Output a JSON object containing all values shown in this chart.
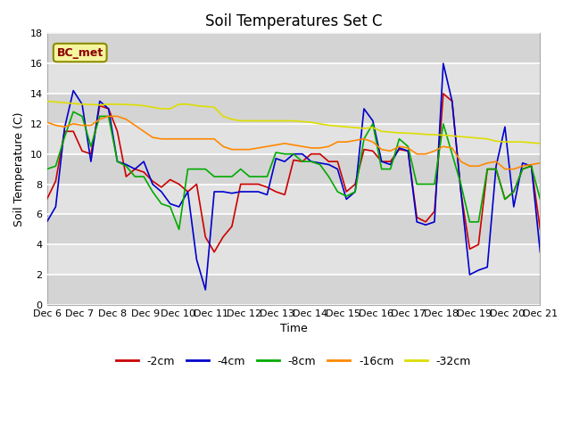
{
  "title": "Soil Temperatures Set C",
  "xlabel": "Time",
  "ylabel": "Soil Temperature (C)",
  "ylim": [
    0,
    18
  ],
  "yticks": [
    0,
    2,
    4,
    6,
    8,
    10,
    12,
    14,
    16,
    18
  ],
  "background_color": "#ffffff",
  "plot_bg_color": "#e0e0e0",
  "annotation_text": "BC_met",
  "annotation_color": "#8b0000",
  "annotation_bg": "#f5f5a0",
  "x_labels": [
    "Dec 6",
    "Dec 7",
    "Dec 8",
    "Dec 9",
    "Dec 10",
    "Dec 11",
    "Dec 12",
    "Dec 13",
    "Dec 14",
    "Dec 15",
    "Dec 16",
    "Dec 17",
    "Dec 18",
    "Dec 19",
    "Dec 20",
    "Dec 21"
  ],
  "series": {
    "-2cm": {
      "color": "#cc0000",
      "data": [
        7.0,
        8.2,
        11.5,
        11.5,
        10.2,
        10.0,
        13.2,
        13.0,
        11.5,
        8.5,
        9.0,
        8.8,
        8.2,
        7.8,
        8.3,
        8.0,
        7.5,
        8.0,
        4.5,
        3.5,
        4.5,
        5.2,
        8.0,
        8.0,
        8.0,
        7.8,
        7.5,
        7.3,
        9.6,
        9.5,
        10.0,
        10.0,
        9.5,
        9.5,
        7.5,
        8.0,
        10.3,
        10.2,
        9.5,
        9.5,
        10.3,
        10.2,
        5.8,
        5.5,
        6.2,
        14.0,
        13.5,
        7.5,
        3.7,
        4.0,
        9.0,
        9.0,
        7.0,
        7.5,
        9.0,
        9.2,
        5.0
      ]
    },
    "-4cm": {
      "color": "#0000cc",
      "data": [
        5.5,
        6.5,
        11.7,
        14.2,
        13.3,
        9.5,
        13.5,
        13.0,
        9.5,
        9.3,
        9.0,
        9.5,
        8.0,
        7.5,
        6.7,
        6.5,
        7.5,
        3.0,
        1.0,
        7.5,
        7.5,
        7.4,
        7.5,
        7.5,
        7.5,
        7.3,
        9.7,
        9.5,
        10.0,
        10.0,
        9.5,
        9.4,
        9.3,
        9.0,
        7.0,
        7.5,
        13.0,
        12.2,
        9.5,
        9.3,
        10.4,
        10.2,
        5.5,
        5.3,
        5.5,
        16.0,
        13.5,
        7.5,
        2.0,
        2.3,
        2.5,
        9.2,
        11.8,
        6.5,
        9.4,
        9.2,
        3.5
      ]
    },
    "-8cm": {
      "color": "#00aa00",
      "data": [
        9.0,
        9.2,
        11.1,
        12.8,
        12.5,
        10.5,
        12.5,
        12.5,
        9.5,
        9.2,
        8.5,
        8.5,
        7.5,
        6.7,
        6.5,
        5.0,
        9.0,
        9.0,
        9.0,
        8.5,
        8.5,
        8.5,
        9.0,
        8.5,
        8.5,
        8.5,
        10.1,
        10.0,
        10.0,
        9.5,
        9.5,
        9.3,
        8.5,
        7.5,
        7.2,
        7.5,
        11.0,
        12.0,
        9.0,
        9.0,
        11.0,
        10.5,
        8.0,
        8.0,
        8.0,
        12.0,
        10.0,
        8.0,
        5.5,
        5.5,
        9.0,
        9.0,
        7.0,
        7.5,
        9.0,
        9.2,
        7.0
      ]
    },
    "-16cm": {
      "color": "#ff8800",
      "data": [
        12.1,
        11.9,
        11.8,
        12.0,
        11.9,
        11.9,
        12.3,
        12.5,
        12.5,
        12.3,
        11.9,
        11.5,
        11.1,
        11.0,
        11.0,
        11.0,
        11.0,
        11.0,
        11.0,
        11.0,
        10.5,
        10.3,
        10.3,
        10.3,
        10.4,
        10.5,
        10.6,
        10.7,
        10.6,
        10.5,
        10.4,
        10.4,
        10.5,
        10.8,
        10.8,
        10.9,
        11.0,
        10.8,
        10.3,
        10.2,
        10.5,
        10.4,
        10.0,
        10.0,
        10.2,
        10.5,
        10.4,
        9.5,
        9.2,
        9.2,
        9.4,
        9.5,
        9.0,
        9.0,
        9.2,
        9.3,
        9.4
      ]
    },
    "-32cm": {
      "color": "#dddd00",
      "data": [
        13.5,
        13.45,
        13.4,
        13.35,
        13.3,
        13.28,
        13.25,
        13.3,
        13.3,
        13.28,
        13.25,
        13.2,
        13.1,
        13.0,
        13.0,
        13.3,
        13.3,
        13.2,
        13.15,
        13.1,
        12.5,
        12.3,
        12.2,
        12.2,
        12.2,
        12.2,
        12.2,
        12.2,
        12.2,
        12.15,
        12.1,
        12.0,
        11.9,
        11.85,
        11.8,
        11.75,
        11.7,
        11.75,
        11.5,
        11.45,
        11.4,
        11.38,
        11.35,
        11.3,
        11.28,
        11.25,
        11.2,
        11.15,
        11.1,
        11.05,
        11.0,
        10.85,
        10.8,
        10.8,
        10.8,
        10.75,
        10.7
      ]
    }
  },
  "legend_colors": {
    "-2cm": "#cc0000",
    "-4cm": "#0000cc",
    "-8cm": "#00aa00",
    "-16cm": "#ff8800",
    "-32cm": "#dddd00"
  }
}
